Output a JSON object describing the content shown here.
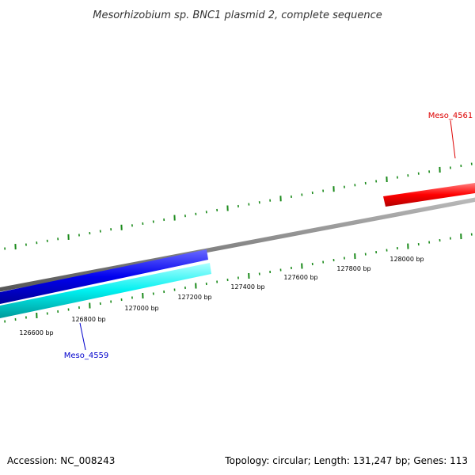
{
  "title": "Mesorhizobium sp. BNC1 plasmid 2, complete sequence",
  "footer": {
    "accession": "Accession: NC_008243",
    "summary": "Topology: circular; Length: 131,247 bp; Genes: 113"
  },
  "colors": {
    "backbone": "#888888",
    "tick": "#1a8a1a",
    "forward_gene": "#ff0000",
    "reverse_gene_dark": "#0000ee",
    "reverse_gene_light": "#00e5e5"
  },
  "scale_labels": [
    "126600 bp",
    "126800 bp",
    "127000 bp",
    "127200 bp",
    "127400 bp",
    "127600 bp",
    "127800 bp",
    "128000 bp"
  ],
  "genes": [
    {
      "name": "Meso_4561",
      "strand": "forward",
      "color": "#dd0000"
    },
    {
      "name": "Meso_4559",
      "strand": "reverse",
      "color": "#0000cc"
    }
  ]
}
